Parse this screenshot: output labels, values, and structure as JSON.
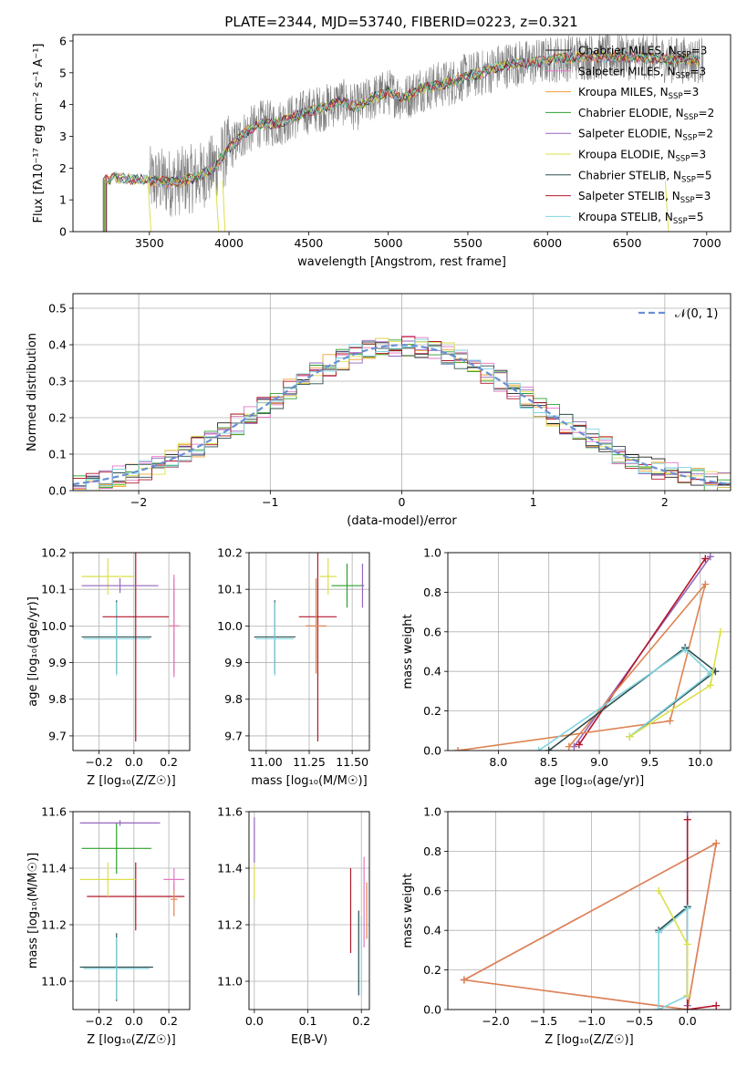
{
  "figure_title": "PLATE=2344, MJD=53740, FIBERID=0223, z=0.321",
  "colors": {
    "chabrier_miles": "#1f1f1f",
    "salpeter_miles": "#e377c2",
    "kroupa_miles": "#f0a030",
    "chabrier_elodie": "#2ca02c",
    "salpeter_elodie": "#9467bd",
    "kroupa_elodie": "#dbe04a",
    "chabrier_stelib": "#2f4f4f",
    "salpeter_stelib": "#b2182b",
    "kroupa_stelib": "#7fd4e0",
    "gaussian": "#6a8fd4",
    "observed": "#808080",
    "orange": "#dd8452"
  },
  "chart_data": [
    {
      "id": "spectrum",
      "type": "line",
      "title": "PLATE=2344, MJD=53740, FIBERID=0223, z=0.321",
      "xlabel": "wavelength [Angstrom, rest frame]",
      "ylabel": "Flux [fλ10⁻¹⁷ erg cm⁻² s⁻¹ A⁻¹]",
      "xlim": [
        3020,
        7150
      ],
      "ylim": [
        0,
        6.2
      ],
      "xticks": [
        3500,
        4000,
        4500,
        5000,
        5500,
        6000,
        6500,
        7000
      ],
      "yticks": [
        0,
        1,
        2,
        3,
        4,
        5,
        6
      ],
      "legend_loc": "upper right",
      "series": [
        {
          "name": "Chabrier MILES, N_SSP=3",
          "label_main": "Chabrier MILES, N",
          "label_sub": "SSP",
          "label_end": "=3",
          "color": "#1f1f1f"
        },
        {
          "name": "Salpeter MILES, N_SSP=3",
          "label_main": "Salpeter MILES, N",
          "label_sub": "SSP",
          "label_end": "=3",
          "color": "#e377c2"
        },
        {
          "name": "Kroupa MILES, N_SSP=3",
          "label_main": "Kroupa MILES, N",
          "label_sub": "SSP",
          "label_end": "=3",
          "color": "#f0a030"
        },
        {
          "name": "Chabrier ELODIE, N_SSP=2",
          "label_main": "Chabrier ELODIE, N",
          "label_sub": "SSP",
          "label_end": "=2",
          "color": "#2ca02c"
        },
        {
          "name": "Salpeter ELODIE, N_SSP=2",
          "label_main": "Salpeter ELODIE, N",
          "label_sub": "SSP",
          "label_end": "=2",
          "color": "#9467bd"
        },
        {
          "name": "Kroupa ELODIE, N_SSP=3",
          "label_main": "Kroupa ELODIE, N",
          "label_sub": "SSP",
          "label_end": "=3",
          "color": "#dbe04a"
        },
        {
          "name": "Chabrier STELIB, N_SSP=5",
          "label_main": "Chabrier STELIB, N",
          "label_sub": "SSP",
          "label_end": "=5",
          "color": "#2f4f4f"
        },
        {
          "name": "Salpeter STELIB, N_SSP=3",
          "label_main": "Salpeter STELIB, N",
          "label_sub": "SSP",
          "label_end": "=3",
          "color": "#b2182b"
        },
        {
          "name": "Kroupa STELIB, N_SSP=5",
          "label_main": "Kroupa STELIB, N",
          "label_sub": "SSP",
          "label_end": "=5",
          "color": "#7fd4e0"
        }
      ],
      "model_continuum": {
        "x": [
          3200,
          3300,
          3400,
          3500,
          3650,
          3800,
          3900,
          4000,
          4100,
          4200,
          4300,
          4400,
          4500,
          4600,
          4700,
          4800,
          4900,
          5000,
          5100,
          5200,
          5300,
          5400,
          5500,
          5600,
          5700,
          5800,
          5900,
          6000,
          6200,
          6400,
          6600,
          6800,
          6950
        ],
        "y": [
          1.6,
          1.7,
          1.65,
          1.6,
          1.55,
          1.7,
          2.0,
          2.6,
          3.1,
          3.4,
          3.4,
          3.6,
          3.8,
          3.9,
          4.1,
          3.9,
          4.2,
          4.4,
          4.2,
          4.5,
          4.6,
          4.7,
          4.9,
          5.0,
          5.2,
          5.3,
          5.3,
          5.4,
          5.5,
          5.5,
          5.5,
          5.4,
          5.4
        ]
      }
    },
    {
      "id": "residuals",
      "type": "histogram",
      "xlabel": "(data-model)/error",
      "ylabel": "Normed distribution",
      "xlim": [
        -2.5,
        2.5
      ],
      "ylim": [
        0,
        0.54
      ],
      "xticks": [
        -2,
        -1,
        0,
        1,
        2
      ],
      "xtick_labels": [
        "−2",
        "−1",
        "0",
        "1",
        "2"
      ],
      "yticks": [
        0.0,
        0.1,
        0.2,
        0.3,
        0.4,
        0.5
      ],
      "legend": "𝒩(0, 1)",
      "bin_width": 0.1
    },
    {
      "id": "age_vs_Z",
      "type": "errorbar",
      "xlabel": "Z [log₁₀(Z/Z☉)]",
      "ylabel": "age  [log₁₀(age/yr)]",
      "xlim": [
        -0.35,
        0.32
      ],
      "ylim": [
        9.66,
        10.2
      ],
      "xticks": [
        -0.2,
        0.0,
        0.2
      ],
      "xtick_labels": [
        "−0.2",
        "0.0",
        "0.2"
      ],
      "yticks": [
        9.7,
        9.8,
        9.9,
        10.0,
        10.1,
        10.2
      ],
      "points": [
        {
          "x": -0.1,
          "y": 9.97,
          "xerr": 0.2,
          "yerr": 0.1,
          "color": "#2f4f4f"
        },
        {
          "x": -0.1,
          "y": 9.965,
          "xerr": 0.19,
          "yerr": 0.1,
          "color": "#7fd4e0"
        },
        {
          "x": 0.01,
          "y": 10.025,
          "xerr": 0.19,
          "yerr": 0.34,
          "color": "#b2182b"
        },
        {
          "x": 0.23,
          "y": 10.0,
          "xerr": 0.03,
          "yerr": 0.13,
          "color": "#dd8452"
        },
        {
          "x": 0.23,
          "y": 10.0,
          "xerr": 0.02,
          "yerr": 0.14,
          "color": "#e377c2"
        },
        {
          "x": -0.15,
          "y": 10.135,
          "xerr": 0.15,
          "yerr": 0.05,
          "color": "#dbe04a"
        },
        {
          "x": -0.08,
          "y": 10.11,
          "xerr": 0.22,
          "yerr": 0.02,
          "color": "#9467bd"
        }
      ]
    },
    {
      "id": "age_vs_mass",
      "type": "errorbar",
      "xlabel": "mass [log₁₀(M/M☉)]",
      "ylabel": "",
      "xlim": [
        10.9,
        11.6
      ],
      "ylim": [
        9.66,
        10.2
      ],
      "xticks": [
        11.0,
        11.25,
        11.5
      ],
      "xtick_labels": [
        "11.00",
        "11.25",
        "11.50"
      ],
      "yticks": [
        9.7,
        9.8,
        9.9,
        10.0,
        10.1,
        10.2
      ],
      "points": [
        {
          "x": 11.05,
          "y": 9.97,
          "xerr": 0.12,
          "yerr": 0.1,
          "color": "#2f4f4f"
        },
        {
          "x": 11.05,
          "y": 9.965,
          "xerr": 0.11,
          "yerr": 0.1,
          "color": "#7fd4e0"
        },
        {
          "x": 11.3,
          "y": 10.025,
          "xerr": 0.11,
          "yerr": 0.34,
          "color": "#b2182b"
        },
        {
          "x": 11.29,
          "y": 10.0,
          "xerr": 0.06,
          "yerr": 0.13,
          "color": "#dd8452"
        },
        {
          "x": 11.36,
          "y": 10.135,
          "xerr": 0.05,
          "yerr": 0.05,
          "color": "#dbe04a"
        },
        {
          "x": 11.47,
          "y": 10.11,
          "xerr": 0.09,
          "yerr": 0.06,
          "color": "#2ca02c"
        },
        {
          "x": 11.56,
          "y": 10.11,
          "xerr": 0.01,
          "yerr": 0.06,
          "color": "#9467bd"
        }
      ]
    },
    {
      "id": "weight_vs_age",
      "type": "line",
      "xlabel": "age  [log₁₀(age/yr)]",
      "ylabel": "mass weight",
      "xlim": [
        7.5,
        10.3
      ],
      "ylim": [
        0,
        1
      ],
      "xticks": [
        8.0,
        8.5,
        9.0,
        9.5,
        10.0
      ],
      "yticks": [
        0.0,
        0.2,
        0.4,
        0.6,
        0.8,
        1.0
      ],
      "series": [
        {
          "x": [
            8.75,
            10.1
          ],
          "y": [
            0.02,
            0.98
          ],
          "color": "#9467bd"
        },
        {
          "x": [
            8.8,
            10.05
          ],
          "y": [
            0.03,
            0.97
          ],
          "color": "#b2182b"
        },
        {
          "x": [
            7.6,
            9.7,
            10.05,
            8.7
          ],
          "y": [
            0.0,
            0.15,
            0.84,
            0.02
          ],
          "color": "#dd8452"
        },
        {
          "x": [
            8.5,
            9.85,
            10.15,
            9.3
          ],
          "y": [
            0.0,
            0.52,
            0.4,
            0.07
          ],
          "color": "#2f4f4f"
        },
        {
          "x": [
            8.4,
            9.85,
            10.1,
            9.3
          ],
          "y": [
            0.0,
            0.51,
            0.39,
            0.07
          ],
          "color": "#7fd4e0"
        },
        {
          "x": [
            9.3,
            10.1,
            10.2
          ],
          "y": [
            0.07,
            0.33,
            0.6
          ],
          "color": "#dbe04a"
        }
      ]
    },
    {
      "id": "mass_vs_Z",
      "type": "errorbar",
      "xlabel": "Z [log₁₀(Z/Z☉)]",
      "ylabel": "mass [log₁₀(M/M☉)]",
      "xlim": [
        -0.35,
        0.32
      ],
      "ylim": [
        10.9,
        11.6
      ],
      "xticks": [
        -0.2,
        0.0,
        0.2
      ],
      "xtick_labels": [
        "−0.2",
        "0.0",
        "0.2"
      ],
      "yticks": [
        11.0,
        11.2,
        11.4,
        11.6
      ],
      "points": [
        {
          "x": -0.1,
          "y": 11.05,
          "xerr": 0.21,
          "yerr": 0.12,
          "color": "#2f4f4f"
        },
        {
          "x": -0.1,
          "y": 11.045,
          "xerr": 0.19,
          "yerr": 0.11,
          "color": "#7fd4e0"
        },
        {
          "x": 0.01,
          "y": 11.3,
          "xerr": 0.28,
          "yerr": 0.12,
          "color": "#b2182b"
        },
        {
          "x": 0.23,
          "y": 11.29,
          "xerr": 0.02,
          "yerr": 0.06,
          "color": "#dd8452"
        },
        {
          "x": 0.23,
          "y": 11.36,
          "xerr": 0.06,
          "yerr": 0.04,
          "color": "#e377c2"
        },
        {
          "x": -0.15,
          "y": 11.36,
          "xerr": 0.16,
          "yerr": 0.06,
          "color": "#dbe04a"
        },
        {
          "x": -0.1,
          "y": 11.47,
          "xerr": 0.2,
          "yerr": 0.09,
          "color": "#2ca02c"
        },
        {
          "x": -0.08,
          "y": 11.56,
          "xerr": 0.23,
          "yerr": 0.01,
          "color": "#9467bd"
        }
      ]
    },
    {
      "id": "mass_vs_EBV",
      "type": "errorbar",
      "xlabel": "E(B-V)",
      "ylabel": "",
      "xlim": [
        -0.01,
        0.215
      ],
      "ylim": [
        10.9,
        11.6
      ],
      "xticks": [
        0.0,
        0.1,
        0.2
      ],
      "yticks": [
        11.0,
        11.2,
        11.4,
        11.6
      ],
      "points": [
        {
          "x": 0.0,
          "y": 11.5,
          "xerr": 0,
          "yerr": 0.08,
          "color": "#9467bd"
        },
        {
          "x": 0.0,
          "y": 11.35,
          "xerr": 0,
          "yerr": 0.06,
          "color": "#dbe04a"
        },
        {
          "x": 0.18,
          "y": 11.25,
          "xerr": 0,
          "yerr": 0.15,
          "color": "#b2182b"
        },
        {
          "x": 0.195,
          "y": 11.1,
          "xerr": 0,
          "yerr": 0.15,
          "color": "#2f4f4f"
        },
        {
          "x": 0.2,
          "y": 11.09,
          "xerr": 0,
          "yerr": 0.14,
          "color": "#7fd4e0"
        },
        {
          "x": 0.205,
          "y": 11.28,
          "xerr": 0,
          "yerr": 0.16,
          "color": "#e377c2"
        },
        {
          "x": 0.21,
          "y": 11.25,
          "xerr": 0,
          "yerr": 0.1,
          "color": "#dd8452"
        }
      ]
    },
    {
      "id": "weight_vs_Z",
      "type": "line",
      "xlabel": "Z [log₁₀(Z/Z☉)]",
      "ylabel": "mass weight",
      "xlim": [
        -2.5,
        0.45
      ],
      "ylim": [
        0,
        1
      ],
      "xticks": [
        -2.0,
        -1.5,
        -1.0,
        -0.5,
        0.0
      ],
      "xtick_labels": [
        "−2.0",
        "−1.5",
        "−1.0",
        "−0.5",
        "0.0"
      ],
      "yticks": [
        0.0,
        0.2,
        0.4,
        0.6,
        0.8,
        1.0
      ],
      "series": [
        {
          "x": [
            -2.33,
            0.3,
            0.0,
            -2.33
          ],
          "y": [
            0.15,
            0.84,
            0.0,
            0.15
          ],
          "color": "#e377c2"
        },
        {
          "x": [
            -2.33,
            0.0,
            0.3,
            -2.33
          ],
          "y": [
            0.15,
            0.0,
            0.84,
            0.15
          ],
          "color": "#dd8452"
        },
        {
          "x": [
            0.0,
            0.0
          ],
          "y": [
            1.0,
            0.02
          ],
          "color": "#9467bd"
        },
        {
          "x": [
            0.0,
            0.0,
            0.3
          ],
          "y": [
            0.96,
            0.0,
            0.02
          ],
          "color": "#b2182b"
        },
        {
          "x": [
            -0.3,
            0.0,
            0.0
          ],
          "y": [
            0.4,
            0.52,
            0.07
          ],
          "color": "#2f4f4f"
        },
        {
          "x": [
            -0.3,
            -0.3,
            0.0,
            0.0,
            -0.3
          ],
          "y": [
            0.0,
            0.39,
            0.51,
            0.07,
            0.0
          ],
          "color": "#7fd4e0"
        },
        {
          "x": [
            -0.3,
            0.0,
            0.0
          ],
          "y": [
            0.6,
            0.33,
            0.07
          ],
          "color": "#dbe04a"
        }
      ]
    }
  ]
}
